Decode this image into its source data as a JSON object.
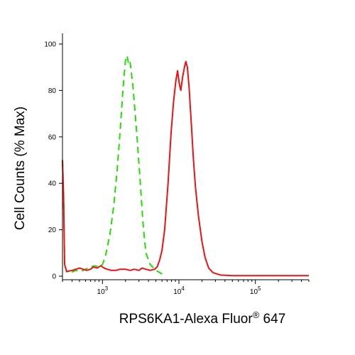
{
  "chart_data": {
    "type": "line",
    "title": "",
    "xlabel": "RPS6KA1-Alexa Fluor",
    "xlabel_super": "®",
    "xlabel_suffix": " 647",
    "ylabel": "Cell Counts (% Max)",
    "xscale": "log",
    "xlim": [
      300,
      500000
    ],
    "ylim": [
      0,
      100
    ],
    "grid": false,
    "yticks": [
      {
        "value": 0,
        "label": "0"
      },
      {
        "value": 20,
        "label": "20"
      },
      {
        "value": 40,
        "label": "40"
      },
      {
        "value": 60,
        "label": "60"
      },
      {
        "value": 80,
        "label": "80"
      },
      {
        "value": 100,
        "label": "100"
      }
    ],
    "xticks": [
      {
        "value": 1000,
        "base": "10",
        "exp": "3"
      },
      {
        "value": 10000,
        "base": "10",
        "exp": "4"
      },
      {
        "value": 100000,
        "base": "10",
        "exp": "5"
      }
    ],
    "series": [
      {
        "color": "#22dd00",
        "dash": "dashed",
        "points": [
          [
            300,
            50
          ],
          [
            310,
            35
          ],
          [
            320,
            5
          ],
          [
            340,
            2
          ],
          [
            380,
            1.5
          ],
          [
            450,
            2.5
          ],
          [
            520,
            2
          ],
          [
            600,
            3
          ],
          [
            700,
            4
          ],
          [
            800,
            4.5
          ],
          [
            900,
            4
          ],
          [
            1000,
            5
          ],
          [
            1100,
            9
          ],
          [
            1250,
            18
          ],
          [
            1400,
            30
          ],
          [
            1550,
            45
          ],
          [
            1700,
            62
          ],
          [
            1850,
            80
          ],
          [
            2000,
            93
          ],
          [
            2100,
            95
          ],
          [
            2200,
            91
          ],
          [
            2300,
            92
          ],
          [
            2500,
            82
          ],
          [
            2800,
            62
          ],
          [
            3100,
            42
          ],
          [
            3400,
            22
          ],
          [
            3700,
            10
          ],
          [
            4200,
            5
          ],
          [
            5000,
            2.5
          ],
          [
            6000,
            1
          ],
          [
            6500,
            0
          ]
        ]
      },
      {
        "color": "#ee1111",
        "dash": "solid",
        "points": [
          [
            300,
            50
          ],
          [
            310,
            35
          ],
          [
            320,
            5
          ],
          [
            340,
            2
          ],
          [
            400,
            2.5
          ],
          [
            450,
            3
          ],
          [
            500,
            3.5
          ],
          [
            560,
            3
          ],
          [
            620,
            2.5
          ],
          [
            700,
            3
          ],
          [
            760,
            4
          ],
          [
            850,
            3.5
          ],
          [
            950,
            4.5
          ],
          [
            1050,
            3.5
          ],
          [
            1150,
            3
          ],
          [
            1300,
            2.5
          ],
          [
            1500,
            2.5
          ],
          [
            1700,
            3
          ],
          [
            2000,
            3
          ],
          [
            2300,
            2.5
          ],
          [
            2600,
            3
          ],
          [
            3000,
            2.5
          ],
          [
            3300,
            3.5
          ],
          [
            3700,
            3
          ],
          [
            4200,
            2.5
          ],
          [
            4800,
            3
          ],
          [
            5200,
            4
          ],
          [
            5600,
            7
          ],
          [
            6000,
            11
          ],
          [
            6500,
            20
          ],
          [
            7200,
            40
          ],
          [
            7900,
            62
          ],
          [
            8500,
            75
          ],
          [
            9100,
            84
          ],
          [
            9600,
            88.5
          ],
          [
            10100,
            83
          ],
          [
            10600,
            80
          ],
          [
            11200,
            86
          ],
          [
            11800,
            90
          ],
          [
            12300,
            92.5
          ],
          [
            12900,
            90
          ],
          [
            13600,
            81
          ],
          [
            14500,
            66
          ],
          [
            15500,
            50
          ],
          [
            16500,
            38
          ],
          [
            18000,
            26
          ],
          [
            20000,
            15
          ],
          [
            22000,
            8
          ],
          [
            24500,
            3.5
          ],
          [
            28000,
            1.5
          ],
          [
            35000,
            0.5
          ],
          [
            50000,
            0.2
          ],
          [
            100000,
            0.2
          ],
          [
            500000,
            0.2
          ]
        ]
      }
    ]
  }
}
